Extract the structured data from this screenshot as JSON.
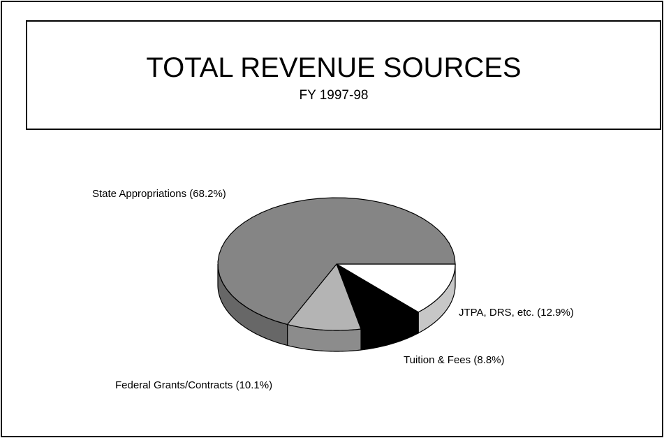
{
  "chart_data": {
    "type": "pie",
    "title": "TOTAL REVENUE SOURCES",
    "subtitle": "FY 1997-98",
    "categories": [
      "JTPA, DRS, etc.",
      "Tuition & Fees",
      "Federal Grants/Contracts",
      "State Appropriations"
    ],
    "values": [
      12.9,
      8.8,
      10.1,
      68.2
    ],
    "value_labels": [
      "(12.9%)",
      "(8.8%)",
      "(10.1%)",
      "(68.2%)"
    ],
    "colors": [
      "#ffffff",
      "#000000",
      "#b4b4b4",
      "#858585"
    ]
  }
}
